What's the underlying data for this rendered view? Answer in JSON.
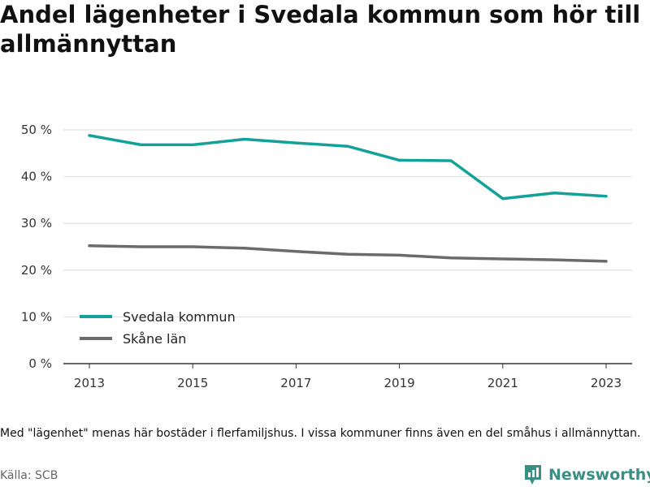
{
  "title": "Andel lägenheter i Svedala kommun som hör till allmännyttan",
  "note": "Med \"lägenhet\" menas här bostäder i flerfamiljshus. I vissa kommuner finns även en del småhus i allmännyttan.",
  "source": "Källa: SCB",
  "brand": "Newsworthy",
  "chart_data": {
    "type": "line",
    "x": [
      2013,
      2014,
      2015,
      2016,
      2017,
      2018,
      2019,
      2020,
      2021,
      2022,
      2023
    ],
    "x_tick_labels": [
      "2013",
      "2015",
      "2017",
      "2019",
      "2021",
      "2023"
    ],
    "y_tick_labels": [
      "0 %",
      "10 %",
      "20 %",
      "30 %",
      "40 %",
      "50 %"
    ],
    "ylim": [
      0,
      50
    ],
    "xlim": [
      2013,
      2023
    ],
    "grid": true,
    "legend_position": "bottom-left",
    "series": [
      {
        "name": "Svedala kommun",
        "color": "#14a19a",
        "values": [
          48.8,
          46.8,
          46.8,
          48.0,
          47.2,
          46.5,
          43.5,
          43.4,
          35.3,
          36.5,
          35.8
        ]
      },
      {
        "name": "Skåne län",
        "color": "#6b6b6e",
        "values": [
          25.2,
          25.0,
          25.0,
          24.7,
          24.0,
          23.4,
          23.2,
          22.6,
          22.4,
          22.2,
          21.9
        ]
      }
    ]
  },
  "colors": {
    "brand": "#3a8f84",
    "grid": "#dddddd",
    "axis": "#333333"
  }
}
